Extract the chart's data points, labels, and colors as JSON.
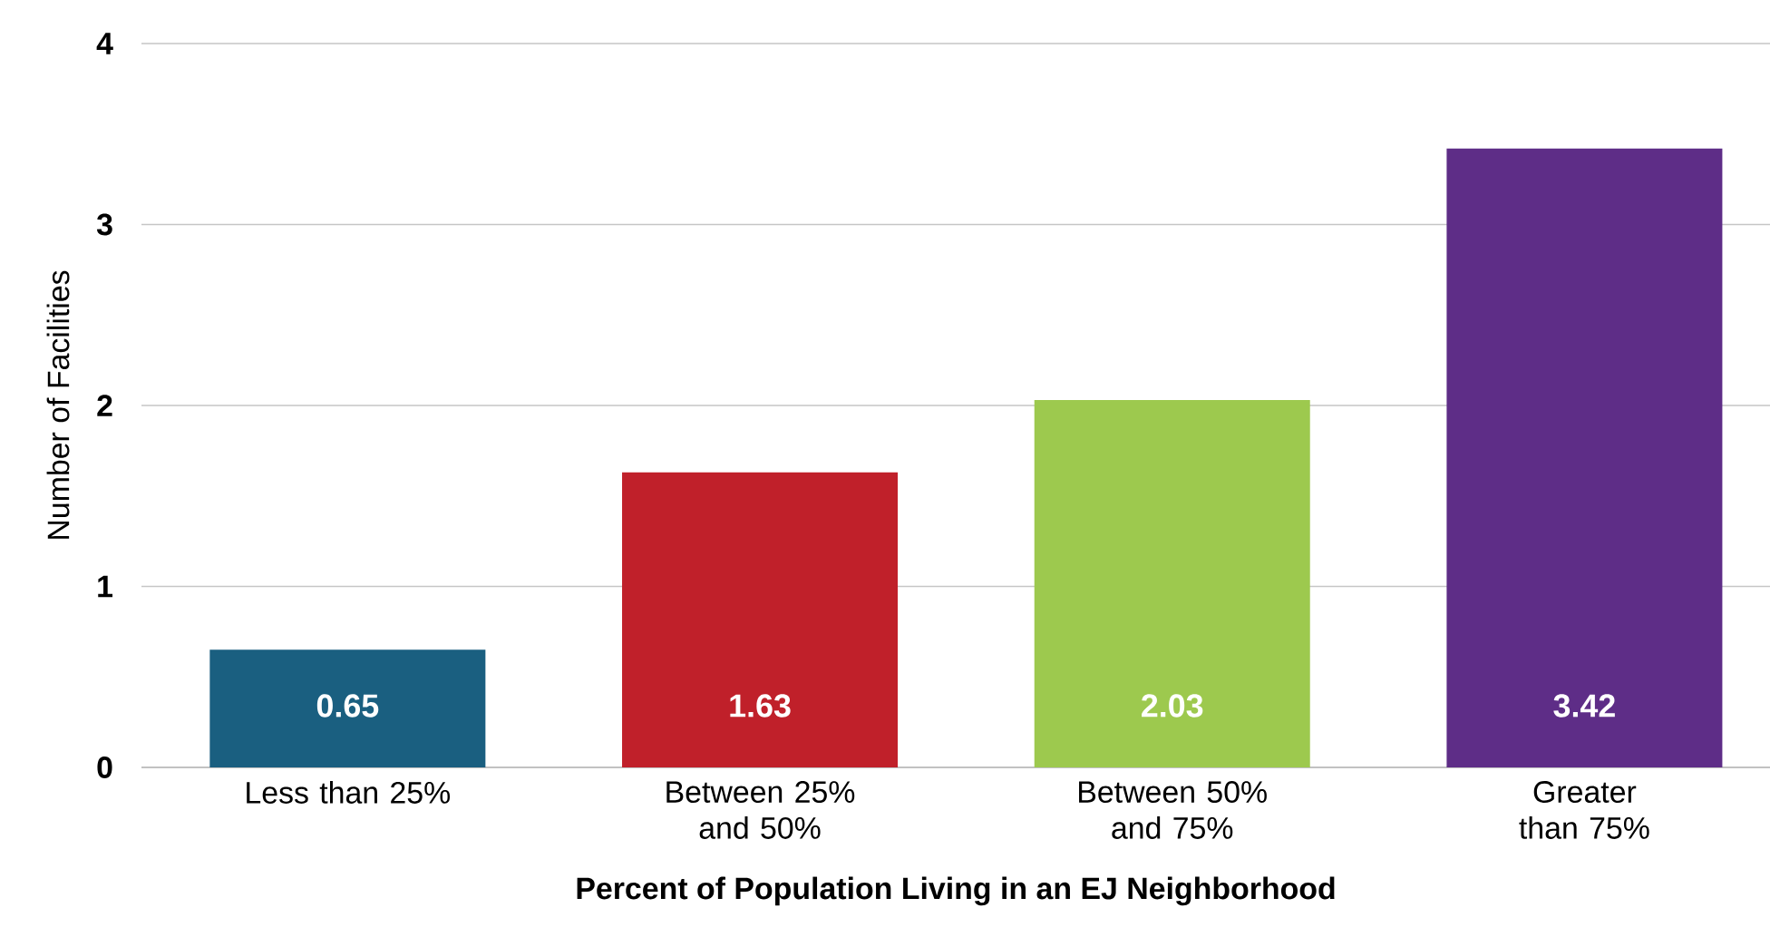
{
  "chart_data": {
    "type": "bar",
    "xlabel": "Percent of Population Living in an EJ Neighborhood",
    "ylabel": "Number of Facilities",
    "categories": [
      "Less than 25%",
      "Between 25% and 50%",
      "Between 50% and 75%",
      "Greater than 75%"
    ],
    "values": [
      0.65,
      1.63,
      2.03,
      3.42
    ],
    "colors": [
      "#1a5f80",
      "#c0202a",
      "#9dc94e",
      "#5e2d87"
    ],
    "ylim": [
      0,
      4
    ],
    "yticks": [
      0,
      1,
      2,
      3,
      4
    ],
    "grid": "y",
    "data_labels": true
  }
}
